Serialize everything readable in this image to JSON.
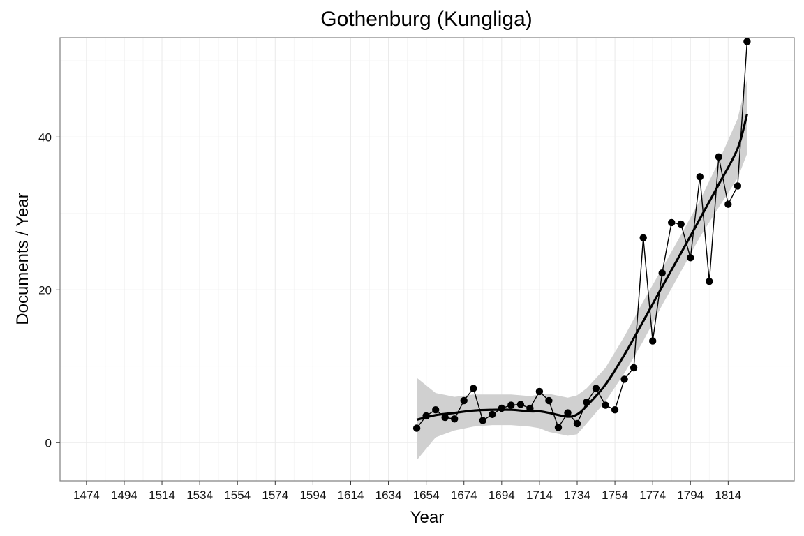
{
  "chart_data": {
    "type": "line",
    "title": "Gothenburg (Kungliga)",
    "xlabel": "Year",
    "ylabel": "Documents / Year",
    "xlim": [
      1460,
      1849
    ],
    "ylim": [
      -5,
      53
    ],
    "x_ticks": [
      1474,
      1494,
      1514,
      1534,
      1554,
      1574,
      1594,
      1614,
      1634,
      1654,
      1674,
      1694,
      1714,
      1734,
      1754,
      1774,
      1794,
      1814
    ],
    "y_ticks": [
      0,
      20,
      40
    ],
    "grid": true,
    "legend": "none",
    "colors": {
      "points": "#000000",
      "line": "#000000",
      "smooth": "#000000",
      "band": "#d0d0d0",
      "grid": "#ebebeb",
      "panel_border": "#7f7f7f"
    },
    "series": [
      {
        "x": [
          1649,
          1654,
          1659,
          1664,
          1669,
          1674,
          1679,
          1684,
          1689,
          1694,
          1699,
          1704,
          1709,
          1714,
          1719,
          1724,
          1729,
          1734,
          1739,
          1744,
          1749,
          1754,
          1759,
          1764,
          1769,
          1774,
          1779,
          1784,
          1789,
          1794,
          1799,
          1804,
          1809,
          1814,
          1819,
          1824
        ],
        "values": [
          1.9,
          3.5,
          4.3,
          3.3,
          3.1,
          5.5,
          7.1,
          2.9,
          3.7,
          4.5,
          4.9,
          5.0,
          4.5,
          6.7,
          5.5,
          2.0,
          3.9,
          2.5,
          5.3,
          7.1,
          4.9,
          4.3,
          8.3,
          9.8,
          26.8,
          13.3,
          22.2,
          28.8,
          28.6,
          24.2,
          34.8,
          21.1,
          37.4,
          31.2,
          33.6,
          52.5
        ]
      }
    ],
    "smooth": {
      "x": [
        1649,
        1659,
        1669,
        1679,
        1689,
        1699,
        1709,
        1714,
        1719,
        1729,
        1734,
        1739,
        1749,
        1759,
        1769,
        1779,
        1789,
        1799,
        1809,
        1819,
        1824
      ],
      "values": [
        3.0,
        3.6,
        3.9,
        4.2,
        4.3,
        4.3,
        4.1,
        4.1,
        3.9,
        3.4,
        3.7,
        4.8,
        7.6,
        11.5,
        15.9,
        20.4,
        24.8,
        29.3,
        33.8,
        38.5,
        43.0
      ],
      "lower": [
        -2.3,
        0.7,
        1.6,
        2.1,
        2.3,
        2.3,
        2.1,
        1.9,
        1.4,
        0.9,
        1.1,
        2.5,
        5.4,
        9.1,
        13.3,
        18.0,
        22.4,
        26.9,
        30.8,
        34.6,
        37.8
      ],
      "upper": [
        8.5,
        6.5,
        6.0,
        6.3,
        6.3,
        6.3,
        6.1,
        6.3,
        6.4,
        5.9,
        6.2,
        7.1,
        9.8,
        13.9,
        18.5,
        22.8,
        27.2,
        31.7,
        36.8,
        42.4,
        47.6
      ]
    }
  }
}
